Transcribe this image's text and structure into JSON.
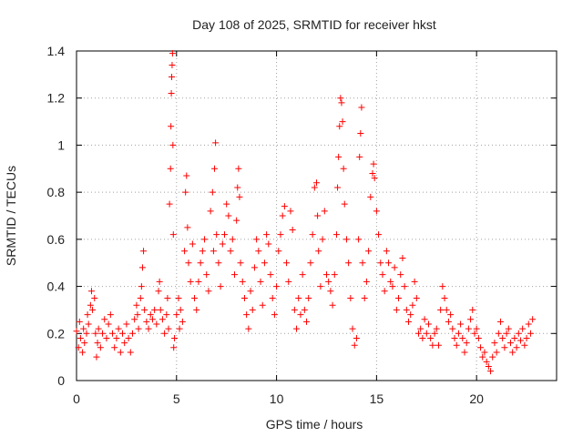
{
  "chart_data": {
    "type": "scatter",
    "title": "Day 108 of 2025, SRMTID for receiver hkst",
    "xlabel": "GPS time / hours",
    "ylabel": "SRMTID / TECUs",
    "xlim": [
      0,
      24
    ],
    "ylim": [
      0,
      1.4
    ],
    "xticks": [
      0,
      5,
      10,
      15,
      20
    ],
    "xtick_labels": [
      "0",
      "5",
      "10",
      "15",
      "20"
    ],
    "yticks": [
      0,
      0.2,
      0.4,
      0.6,
      0.8,
      1,
      1.2,
      1.4
    ],
    "ytick_labels": [
      "0",
      "0.2",
      "0.4",
      "0.6",
      "0.8",
      "1",
      "1.2",
      "1.4"
    ],
    "grid": true,
    "marker": "+",
    "color": "#ff0000",
    "series": [
      {
        "name": "SRMTID",
        "points": [
          [
            0.0,
            0.21
          ],
          [
            0.1,
            0.14
          ],
          [
            0.15,
            0.25
          ],
          [
            0.2,
            0.18
          ],
          [
            0.3,
            0.12
          ],
          [
            0.35,
            0.22
          ],
          [
            0.4,
            0.16
          ],
          [
            0.5,
            0.2
          ],
          [
            0.55,
            0.28
          ],
          [
            0.6,
            0.24
          ],
          [
            0.7,
            0.32
          ],
          [
            0.75,
            0.38
          ],
          [
            0.8,
            0.3
          ],
          [
            0.9,
            0.35
          ],
          [
            0.95,
            0.2
          ],
          [
            1.0,
            0.1
          ],
          [
            1.05,
            0.16
          ],
          [
            1.1,
            0.22
          ],
          [
            1.2,
            0.14
          ],
          [
            1.3,
            0.2
          ],
          [
            1.4,
            0.26
          ],
          [
            1.5,
            0.18
          ],
          [
            1.6,
            0.24
          ],
          [
            1.7,
            0.28
          ],
          [
            1.8,
            0.2
          ],
          [
            1.9,
            0.14
          ],
          [
            2.0,
            0.18
          ],
          [
            2.1,
            0.22
          ],
          [
            2.2,
            0.12
          ],
          [
            2.3,
            0.2
          ],
          [
            2.4,
            0.16
          ],
          [
            2.5,
            0.24
          ],
          [
            2.6,
            0.18
          ],
          [
            2.7,
            0.12
          ],
          [
            2.8,
            0.2
          ],
          [
            2.9,
            0.26
          ],
          [
            3.0,
            0.32
          ],
          [
            3.05,
            0.28
          ],
          [
            3.1,
            0.22
          ],
          [
            3.2,
            0.35
          ],
          [
            3.25,
            0.4
          ],
          [
            3.3,
            0.48
          ],
          [
            3.35,
            0.55
          ],
          [
            3.4,
            0.3
          ],
          [
            3.5,
            0.25
          ],
          [
            3.6,
            0.22
          ],
          [
            3.7,
            0.28
          ],
          [
            3.8,
            0.26
          ],
          [
            3.9,
            0.3
          ],
          [
            4.0,
            0.24
          ],
          [
            4.1,
            0.38
          ],
          [
            4.15,
            0.42
          ],
          [
            4.2,
            0.3
          ],
          [
            4.3,
            0.26
          ],
          [
            4.4,
            0.2
          ],
          [
            4.5,
            0.28
          ],
          [
            4.55,
            0.35
          ],
          [
            4.6,
            0.22
          ],
          [
            4.65,
            0.75
          ],
          [
            4.7,
            0.9
          ],
          [
            4.72,
            1.08
          ],
          [
            4.74,
            1.22
          ],
          [
            4.76,
            1.29
          ],
          [
            4.78,
            1.34
          ],
          [
            4.8,
            1.39
          ],
          [
            4.82,
            1.0
          ],
          [
            4.84,
            0.62
          ],
          [
            4.86,
            0.14
          ],
          [
            4.9,
            0.18
          ],
          [
            5.0,
            0.28
          ],
          [
            5.1,
            0.35
          ],
          [
            5.15,
            0.22
          ],
          [
            5.2,
            0.3
          ],
          [
            5.3,
            0.25
          ],
          [
            5.4,
            0.55
          ],
          [
            5.45,
            0.8
          ],
          [
            5.5,
            0.87
          ],
          [
            5.55,
            0.65
          ],
          [
            5.6,
            0.5
          ],
          [
            5.7,
            0.42
          ],
          [
            5.8,
            0.58
          ],
          [
            5.9,
            0.35
          ],
          [
            6.0,
            0.3
          ],
          [
            6.1,
            0.42
          ],
          [
            6.2,
            0.5
          ],
          [
            6.3,
            0.55
          ],
          [
            6.4,
            0.6
          ],
          [
            6.5,
            0.45
          ],
          [
            6.6,
            0.38
          ],
          [
            6.7,
            0.72
          ],
          [
            6.8,
            0.8
          ],
          [
            6.85,
            0.55
          ],
          [
            6.9,
            0.9
          ],
          [
            6.95,
            1.01
          ],
          [
            7.0,
            0.62
          ],
          [
            7.1,
            0.5
          ],
          [
            7.2,
            0.4
          ],
          [
            7.3,
            0.58
          ],
          [
            7.4,
            0.62
          ],
          [
            7.5,
            0.75
          ],
          [
            7.6,
            0.7
          ],
          [
            7.7,
            0.55
          ],
          [
            7.8,
            0.6
          ],
          [
            7.9,
            0.45
          ],
          [
            8.0,
            0.68
          ],
          [
            8.05,
            0.82
          ],
          [
            8.1,
            0.9
          ],
          [
            8.15,
            0.78
          ],
          [
            8.2,
            0.5
          ],
          [
            8.3,
            0.42
          ],
          [
            8.4,
            0.35
          ],
          [
            8.5,
            0.28
          ],
          [
            8.6,
            0.22
          ],
          [
            8.7,
            0.38
          ],
          [
            8.8,
            0.3
          ],
          [
            8.9,
            0.48
          ],
          [
            9.0,
            0.6
          ],
          [
            9.1,
            0.55
          ],
          [
            9.2,
            0.42
          ],
          [
            9.3,
            0.32
          ],
          [
            9.4,
            0.5
          ],
          [
            9.5,
            0.62
          ],
          [
            9.6,
            0.58
          ],
          [
            9.7,
            0.45
          ],
          [
            9.8,
            0.35
          ],
          [
            9.9,
            0.28
          ],
          [
            10.0,
            0.4
          ],
          [
            10.1,
            0.55
          ],
          [
            10.2,
            0.62
          ],
          [
            10.3,
            0.7
          ],
          [
            10.4,
            0.74
          ],
          [
            10.5,
            0.5
          ],
          [
            10.6,
            0.42
          ],
          [
            10.7,
            0.72
          ],
          [
            10.8,
            0.64
          ],
          [
            10.9,
            0.3
          ],
          [
            11.0,
            0.22
          ],
          [
            11.1,
            0.35
          ],
          [
            11.2,
            0.28
          ],
          [
            11.3,
            0.45
          ],
          [
            11.4,
            0.3
          ],
          [
            11.5,
            0.25
          ],
          [
            11.6,
            0.35
          ],
          [
            11.7,
            0.5
          ],
          [
            11.8,
            0.62
          ],
          [
            11.9,
            0.82
          ],
          [
            12.0,
            0.84
          ],
          [
            12.05,
            0.7
          ],
          [
            12.1,
            0.55
          ],
          [
            12.2,
            0.4
          ],
          [
            12.3,
            0.6
          ],
          [
            12.4,
            0.72
          ],
          [
            12.5,
            0.45
          ],
          [
            12.6,
            0.42
          ],
          [
            12.7,
            0.38
          ],
          [
            12.8,
            0.32
          ],
          [
            12.9,
            0.45
          ],
          [
            13.0,
            0.62
          ],
          [
            13.05,
            0.82
          ],
          [
            13.1,
            0.95
          ],
          [
            13.15,
            1.08
          ],
          [
            13.2,
            1.2
          ],
          [
            13.25,
            1.18
          ],
          [
            13.3,
            1.1
          ],
          [
            13.35,
            0.9
          ],
          [
            13.4,
            0.75
          ],
          [
            13.5,
            0.6
          ],
          [
            13.6,
            0.5
          ],
          [
            13.7,
            0.35
          ],
          [
            13.8,
            0.22
          ],
          [
            13.9,
            0.15
          ],
          [
            14.0,
            0.18
          ],
          [
            14.1,
            0.6
          ],
          [
            14.15,
            0.95
          ],
          [
            14.2,
            1.05
          ],
          [
            14.25,
            1.16
          ],
          [
            14.3,
            0.5
          ],
          [
            14.4,
            0.35
          ],
          [
            14.5,
            0.42
          ],
          [
            14.6,
            0.55
          ],
          [
            14.7,
            0.78
          ],
          [
            14.8,
            0.88
          ],
          [
            14.85,
            0.92
          ],
          [
            14.9,
            0.86
          ],
          [
            15.0,
            0.72
          ],
          [
            15.1,
            0.62
          ],
          [
            15.2,
            0.5
          ],
          [
            15.3,
            0.45
          ],
          [
            15.4,
            0.38
          ],
          [
            15.5,
            0.55
          ],
          [
            15.6,
            0.5
          ],
          [
            15.7,
            0.42
          ],
          [
            15.8,
            0.4
          ],
          [
            15.9,
            0.48
          ],
          [
            16.0,
            0.3
          ],
          [
            16.1,
            0.35
          ],
          [
            16.2,
            0.45
          ],
          [
            16.3,
            0.52
          ],
          [
            16.4,
            0.4
          ],
          [
            16.5,
            0.3
          ],
          [
            16.6,
            0.25
          ],
          [
            16.7,
            0.28
          ],
          [
            16.8,
            0.32
          ],
          [
            16.9,
            0.42
          ],
          [
            17.0,
            0.35
          ],
          [
            17.1,
            0.2
          ],
          [
            17.2,
            0.22
          ],
          [
            17.3,
            0.18
          ],
          [
            17.4,
            0.26
          ],
          [
            17.5,
            0.2
          ],
          [
            17.6,
            0.24
          ],
          [
            17.7,
            0.18
          ],
          [
            17.8,
            0.15
          ],
          [
            17.9,
            0.2
          ],
          [
            18.0,
            0.22
          ],
          [
            18.1,
            0.15
          ],
          [
            18.2,
            0.3
          ],
          [
            18.3,
            0.4
          ],
          [
            18.4,
            0.35
          ],
          [
            18.5,
            0.3
          ],
          [
            18.6,
            0.25
          ],
          [
            18.7,
            0.28
          ],
          [
            18.8,
            0.22
          ],
          [
            18.9,
            0.18
          ],
          [
            19.0,
            0.15
          ],
          [
            19.1,
            0.2
          ],
          [
            19.2,
            0.24
          ],
          [
            19.3,
            0.18
          ],
          [
            19.4,
            0.12
          ],
          [
            19.5,
            0.16
          ],
          [
            19.6,
            0.22
          ],
          [
            19.7,
            0.26
          ],
          [
            19.8,
            0.3
          ],
          [
            19.9,
            0.2
          ],
          [
            20.0,
            0.22
          ],
          [
            20.1,
            0.18
          ],
          [
            20.2,
            0.14
          ],
          [
            20.3,
            0.1
          ],
          [
            20.4,
            0.12
          ],
          [
            20.5,
            0.08
          ],
          [
            20.6,
            0.06
          ],
          [
            20.7,
            0.04
          ],
          [
            20.8,
            0.1
          ],
          [
            20.9,
            0.16
          ],
          [
            21.0,
            0.12
          ],
          [
            21.1,
            0.2
          ],
          [
            21.2,
            0.25
          ],
          [
            21.3,
            0.18
          ],
          [
            21.4,
            0.14
          ],
          [
            21.5,
            0.2
          ],
          [
            21.6,
            0.22
          ],
          [
            21.7,
            0.16
          ],
          [
            21.8,
            0.12
          ],
          [
            21.9,
            0.18
          ],
          [
            22.0,
            0.14
          ],
          [
            22.1,
            0.2
          ],
          [
            22.2,
            0.17
          ],
          [
            22.3,
            0.22
          ],
          [
            22.4,
            0.15
          ],
          [
            22.5,
            0.18
          ],
          [
            22.6,
            0.24
          ],
          [
            22.7,
            0.2
          ],
          [
            22.8,
            0.26
          ]
        ]
      }
    ]
  }
}
